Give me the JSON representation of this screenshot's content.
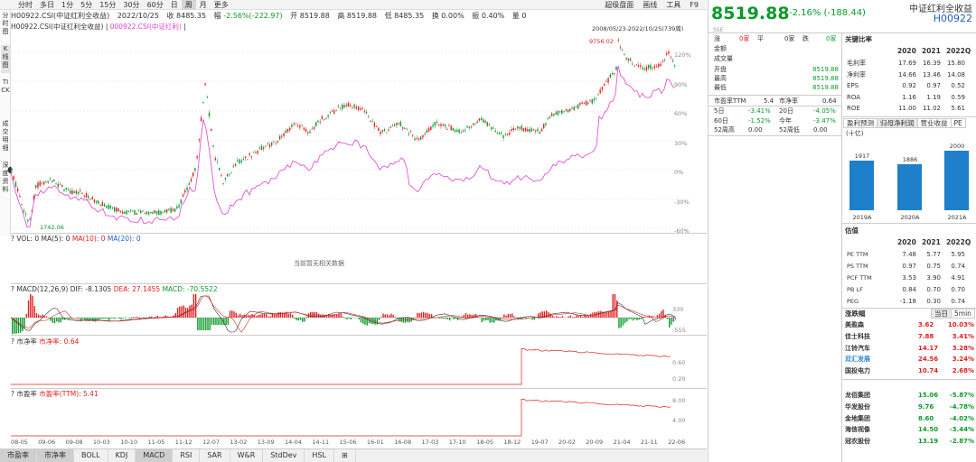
{
  "toolbar": {
    "timeframes": [
      "分时",
      "多日",
      "1分",
      "5分",
      "15分",
      "30分",
      "60分",
      "日",
      "周",
      "月",
      "更多"
    ],
    "active_timeframe": "周",
    "right_tools": [
      "超级盘面",
      "画线",
      "工具",
      "F9"
    ]
  },
  "left_tabs": [
    {
      "label": "分时图",
      "active": false
    },
    {
      "label": "K线图",
      "active": true
    },
    {
      "label": "TICK",
      "active": false
    },
    {
      "label": "成交明细",
      "active": false
    },
    {
      "label": "深度资料",
      "active": false
    }
  ],
  "price_bar": {
    "name": "H00922.CSI(中证红利全收益)",
    "date": "2022/10/25",
    "close_label": "收",
    "close": "8485.35",
    "change_label": "幅",
    "change": "-2.56%(-222.97)",
    "open_label": "开",
    "open": "8519.88",
    "high_label": "高",
    "high": "8519.88",
    "low_label": "低",
    "low": "8485.35",
    "turnover_label": "换",
    "turnover": "0.00%",
    "amplitude_label": "振",
    "amplitude": "0.40%",
    "qty": "量 0"
  },
  "compare_bar": {
    "main": "H00922.CSI(中证红利全收益)",
    "compare": "000922.CSI(中证红利)"
  },
  "range_label": "2008/05/23-2022/10/25(739周)",
  "price_axis": [
    "120%",
    "90%",
    "60%",
    "30%",
    "0%",
    "-30%",
    "-60%"
  ],
  "annotations": {
    "high": "9756.02",
    "low": "1742.06"
  },
  "vol_panel": {
    "title": "VOL: 0",
    "ma5": "MA(5): 0",
    "ma10": "MA(10): 0",
    "ma20": "MA(20): 0",
    "empty": "当前暂无相关数据"
  },
  "macd_panel": {
    "title": "MACD(12,26,9)",
    "dif": "DIF: -8.1305",
    "dea": "DEA: 27.1455",
    "macd": "MACD: -70.5522",
    "axis": [
      "330",
      "0",
      "-555"
    ]
  },
  "pb_panel": {
    "title": "市净率",
    "value": "市净率: 0.64",
    "axis": [
      "0.60",
      "0.20"
    ]
  },
  "pe_panel": {
    "title": "市盈率",
    "value": "市盈率(TTM): 5.41",
    "axis": [
      "8.00",
      "4.00"
    ]
  },
  "dates": [
    "08-05",
    "09-06",
    "09-08",
    "10-03",
    "10-10",
    "11-05",
    "11-12",
    "12-07",
    "13-02",
    "13-09",
    "14-04",
    "14-11",
    "15-06",
    "16-01",
    "16-08",
    "17-03",
    "17-10",
    "18-05",
    "18-12",
    "19-07",
    "20-02",
    "20-09",
    "21-04",
    "21-11",
    "22-06"
  ],
  "bottom_tabs": [
    "市盈率",
    "市净率",
    "BOLL",
    "KDJ",
    "MACD",
    "RSI",
    "SAR",
    "W&R",
    "StdDev",
    "HSL",
    "⊞"
  ],
  "bottom_active": [
    "市盈率",
    "市净率",
    "MACD"
  ],
  "quote": {
    "price": "8519.88",
    "change": "-2.16% (-188.44)",
    "name": "中证红利全收益",
    "code": "H00922",
    "exchange": "SSE",
    "rows_left": [
      [
        "涨",
        "0家",
        "平",
        "0家",
        "跌",
        "0家"
      ],
      [
        "金额",
        "",
        "",
        "",
        "",
        ""
      ],
      [
        "成交量",
        "",
        "",
        "",
        "",
        ""
      ],
      [
        "开盘",
        "8519.88"
      ],
      [
        "最高",
        "8519.88"
      ],
      [
        "最低",
        "8519.88"
      ]
    ],
    "pe_ttm": "5.4",
    "pb_label": "市净率",
    "pb": "0.64",
    "pe_label": "市盈率TTM",
    "perf": [
      [
        "5日",
        "-3.41%",
        "20日",
        "-4.05%"
      ],
      [
        "60日",
        "-1.52%",
        "今年",
        "-3.47%"
      ],
      [
        "52周高",
        "0.00",
        "52周低",
        "0.00"
      ]
    ]
  },
  "key_ratios": {
    "title": "关键比率",
    "years": [
      "2020",
      "2021",
      "2022Q"
    ],
    "rows": [
      [
        "毛利率",
        "17.69",
        "16.39",
        "15.80"
      ],
      [
        "净利率",
        "14.66",
        "13.46",
        "14.08"
      ],
      [
        "EPS",
        "0.92",
        "0.97",
        "0.52"
      ],
      [
        "ROA",
        "1.16",
        "1.19",
        "0.59"
      ],
      [
        "ROE",
        "11.00",
        "11.02",
        "5.61"
      ]
    ]
  },
  "profit": {
    "tabs": [
      "盈利预测",
      "归母净利润",
      "营业收益",
      "PE"
    ],
    "active": "归母净利润",
    "unit": "(十亿)",
    "bars": [
      {
        "label": "2019A",
        "value": 1917
      },
      {
        "label": "2020A",
        "value": 1886
      },
      {
        "label": "2021A",
        "value": 2000
      }
    ]
  },
  "valuation": {
    "title": "估值",
    "years": [
      "2020",
      "2021",
      "2022Q"
    ],
    "rows": [
      [
        "PE TTM",
        "7.48",
        "5.77",
        "5.95"
      ],
      [
        "PS TTM",
        "0.97",
        "0.75",
        "0.74"
      ],
      [
        "PCF TTM",
        "3.53",
        "3.90",
        "4.91"
      ],
      [
        "PB LF",
        "0.84",
        "0.70",
        "0.70"
      ],
      [
        "PEG",
        "-1.18",
        "0.30",
        "0.74"
      ]
    ]
  },
  "movers": {
    "title": "涨跌幅",
    "tabs": [
      "当日",
      "5min"
    ],
    "up": [
      [
        "美盈森",
        "3.62",
        "10.03%"
      ],
      [
        "佳士科技",
        "7.88",
        "3.41%"
      ],
      [
        "江铃汽车",
        "14.17",
        "3.28%"
      ],
      [
        "双汇发展",
        "24.56",
        "3.24%"
      ],
      [
        "国投电力",
        "10.74",
        "2.68%"
      ]
    ],
    "down": [
      [
        "龙佰集团",
        "15.06",
        "-5.87%"
      ],
      [
        "华发股份",
        "9.76",
        "-4.78%"
      ],
      [
        "金地集团",
        "8.60",
        "-4.02%"
      ],
      [
        "海信视像",
        "14.50",
        "-3.44%"
      ],
      [
        "冠农股份",
        "13.19",
        "-2.87%"
      ]
    ]
  },
  "colors": {
    "up": "#e02020",
    "down": "#0a9a2a",
    "compare": "#e040d0",
    "bar": "#1e7fcb"
  }
}
